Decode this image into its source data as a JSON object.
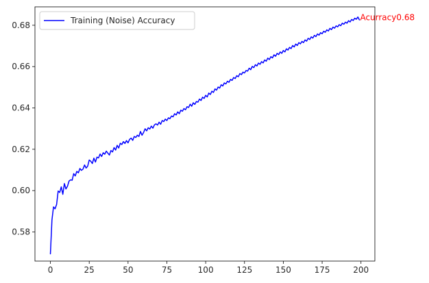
{
  "chart_data": {
    "type": "line",
    "title": "",
    "xlabel": "",
    "ylabel": "",
    "xlim": [
      -9.95,
      208.95
    ],
    "ylim": [
      0.5659,
      0.6889
    ],
    "xticks": [
      0,
      25,
      50,
      75,
      100,
      125,
      150,
      175,
      200
    ],
    "yticks": [
      0.58,
      0.6,
      0.62,
      0.64,
      0.66,
      0.68
    ],
    "ytick_labels": [
      "0.58",
      "0.60",
      "0.62",
      "0.64",
      "0.66",
      "0.68"
    ],
    "grid": false,
    "legend": {
      "placement": "upper-left"
    },
    "series": [
      {
        "name": "Training (Noise) Accuracy",
        "color": "#0000ff",
        "x": [
          0,
          1,
          2,
          3,
          4,
          5,
          6,
          7,
          8,
          9,
          10,
          11,
          12,
          13,
          14,
          15,
          16,
          17,
          18,
          19,
          20,
          21,
          22,
          23,
          24,
          25,
          26,
          27,
          28,
          29,
          30,
          31,
          32,
          33,
          34,
          35,
          36,
          37,
          38,
          39,
          40,
          41,
          42,
          43,
          44,
          45,
          46,
          47,
          48,
          49,
          50,
          51,
          52,
          53,
          54,
          55,
          56,
          57,
          58,
          59,
          60,
          61,
          62,
          63,
          64,
          65,
          66,
          67,
          68,
          69,
          70,
          71,
          72,
          73,
          74,
          75,
          76,
          77,
          78,
          79,
          80,
          81,
          82,
          83,
          84,
          85,
          86,
          87,
          88,
          89,
          90,
          91,
          92,
          93,
          94,
          95,
          96,
          97,
          98,
          99,
          100,
          101,
          102,
          103,
          104,
          105,
          106,
          107,
          108,
          109,
          110,
          111,
          112,
          113,
          114,
          115,
          116,
          117,
          118,
          119,
          120,
          121,
          122,
          123,
          124,
          125,
          126,
          127,
          128,
          129,
          130,
          131,
          132,
          133,
          134,
          135,
          136,
          137,
          138,
          139,
          140,
          141,
          142,
          143,
          144,
          145,
          146,
          147,
          148,
          149,
          150,
          151,
          152,
          153,
          154,
          155,
          156,
          157,
          158,
          159,
          160,
          161,
          162,
          163,
          164,
          165,
          166,
          167,
          168,
          169,
          170,
          171,
          172,
          173,
          174,
          175,
          176,
          177,
          178,
          179,
          180,
          181,
          182,
          183,
          184,
          185,
          186,
          187,
          188,
          189,
          190,
          191,
          192,
          193,
          194,
          195,
          196,
          197,
          198,
          199
        ],
        "values": [
          0.5694,
          0.5858,
          0.5921,
          0.5912,
          0.5933,
          0.5998,
          0.5991,
          0.6018,
          0.5982,
          0.6034,
          0.6008,
          0.6021,
          0.6046,
          0.6052,
          0.605,
          0.6082,
          0.6071,
          0.6093,
          0.6086,
          0.6107,
          0.6098,
          0.6104,
          0.6124,
          0.6109,
          0.6118,
          0.6148,
          0.6142,
          0.6131,
          0.6157,
          0.6138,
          0.6162,
          0.6158,
          0.6177,
          0.6165,
          0.6183,
          0.6176,
          0.6191,
          0.6181,
          0.6172,
          0.6194,
          0.6187,
          0.6208,
          0.6196,
          0.6219,
          0.6206,
          0.6229,
          0.6223,
          0.6237,
          0.6228,
          0.6242,
          0.6231,
          0.6248,
          0.6254,
          0.6243,
          0.6262,
          0.6257,
          0.6268,
          0.6262,
          0.6286,
          0.6268,
          0.6281,
          0.6299,
          0.6289,
          0.6304,
          0.6298,
          0.6312,
          0.6302,
          0.6318,
          0.6323,
          0.6317,
          0.6331,
          0.6321,
          0.6339,
          0.6334,
          0.6346,
          0.6339,
          0.6352,
          0.6348,
          0.6361,
          0.6357,
          0.6372,
          0.6366,
          0.6381,
          0.6372,
          0.6389,
          0.6384,
          0.6397,
          0.6391,
          0.6406,
          0.6402,
          0.6418,
          0.6408,
          0.6425,
          0.6417,
          0.6431,
          0.6428,
          0.6443,
          0.6436,
          0.6452,
          0.6446,
          0.6461,
          0.6453,
          0.6472,
          0.6465,
          0.6481,
          0.6475,
          0.6492,
          0.6486,
          0.6501,
          0.6496,
          0.6512,
          0.6506,
          0.6521,
          0.6516,
          0.6529,
          0.6524,
          0.6538,
          0.6533,
          0.6547,
          0.6542,
          0.6556,
          0.6551,
          0.6566,
          0.6561,
          0.6573,
          0.6569,
          0.6581,
          0.6578,
          0.6592,
          0.6585,
          0.6601,
          0.6595,
          0.6609,
          0.6603,
          0.6617,
          0.6611,
          0.6624,
          0.6618,
          0.6632,
          0.6626,
          0.6641,
          0.6634,
          0.6648,
          0.6642,
          0.6657,
          0.665,
          0.6664,
          0.6658,
          0.6671,
          0.6664,
          0.6678,
          0.6671,
          0.6686,
          0.668,
          0.6693,
          0.6687,
          0.6702,
          0.6695,
          0.6709,
          0.6702,
          0.6716,
          0.671,
          0.6722,
          0.6716,
          0.6729,
          0.6723,
          0.6737,
          0.6731,
          0.6744,
          0.6738,
          0.6751,
          0.6745,
          0.6758,
          0.6752,
          0.6764,
          0.6759,
          0.6771,
          0.6766,
          0.6778,
          0.6772,
          0.6785,
          0.6779,
          0.6791,
          0.6786,
          0.6797,
          0.6792,
          0.6803,
          0.6798,
          0.681,
          0.6805,
          0.6815,
          0.681,
          0.6822,
          0.6816,
          0.6828,
          0.6823,
          0.6834,
          0.6829,
          0.684,
          0.6826
        ]
      }
    ],
    "annotations": [
      {
        "text": "Acurracy0.68",
        "x": 199,
        "y": 0.6826,
        "color": "#ff0000"
      }
    ]
  }
}
